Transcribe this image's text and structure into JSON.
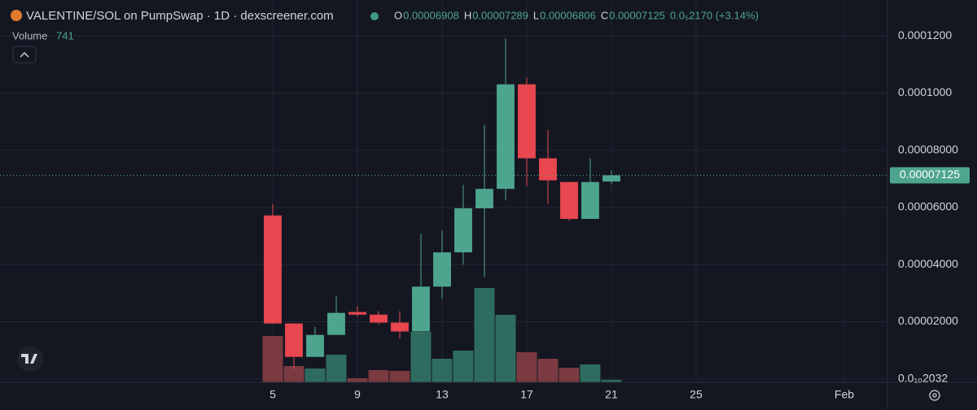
{
  "chart_data": {
    "type": "candlestick",
    "title": "VALENTINE/SOL on PumpSwap · 1D · dexscreener.com",
    "legend_labels": {
      "open": "O",
      "high": "H",
      "low": "L",
      "close": "C"
    },
    "change_label": "0.0₅2170 (+3.14%)",
    "x": [
      5,
      6,
      7,
      8,
      9,
      10,
      11,
      12,
      13,
      14,
      15,
      16,
      17,
      18,
      19,
      20,
      21
    ],
    "open": [
      5.72e-05,
      1.94e-05,
      7.7e-06,
      1.54e-05,
      2.34e-05,
      2.25e-05,
      1.97e-05,
      1.66e-05,
      3.23e-05,
      4.43e-05,
      5.97e-05,
      6.65e-05,
      0.0001031,
      7.72e-05,
      6.89e-05,
      5.6e-05,
      6.908e-05
    ],
    "high": [
      6.12e-05,
      1.94e-05,
      1.82e-05,
      2.89e-05,
      2.55e-05,
      2.37e-05,
      2.37e-05,
      5.08e-05,
      5.2e-05,
      6.8e-05,
      8.89e-05,
      0.0001191,
      0.0001055,
      8.71e-05,
      6.89e-05,
      7.72e-05,
      7.289e-05
    ],
    "low": [
      1.94e-05,
      3.4e-06,
      7.7e-06,
      1.54e-05,
      2.18e-05,
      1.91e-05,
      1.42e-05,
      1.66e-05,
      2.8e-05,
      4e-05,
      3.57e-05,
      6.25e-05,
      6.74e-05,
      6.12e-05,
      5.54e-05,
      5.6e-05,
      6.806e-05
    ],
    "close": [
      1.94e-05,
      7.7e-06,
      1.54e-05,
      2.31e-05,
      2.25e-05,
      1.97e-05,
      1.66e-05,
      3.23e-05,
      4.43e-05,
      5.97e-05,
      6.65e-05,
      0.0001031,
      7.72e-05,
      6.95e-05,
      5.6e-05,
      6.89e-05,
      7.125e-05
    ],
    "volume": {
      "name": "Volume",
      "values": [
        14079,
        4940,
        4199,
        8398,
        1235,
        3705,
        3458,
        15314,
        7163,
        9633,
        28652,
        20501,
        9139,
        7163,
        4446,
        5434,
        741
      ]
    },
    "up_color": "#4ea58e",
    "down_color": "#e8474f",
    "up_volume_color": "#2f6c60",
    "down_volume_color": "#7b3a41",
    "xlim": [
      -7.885,
      34.04
    ],
    "xticks": [
      5,
      9,
      13,
      17,
      21,
      25,
      {
        "value": 32,
        "label": "Feb"
      }
    ],
    "ylim": [
      -1.2e-06,
      0.0001326
    ],
    "yticks": [
      {
        "value": 2.03e-11,
        "label": "0.0₁₀2032"
      },
      {
        "value": 2e-05,
        "label": "0.00002000"
      },
      {
        "value": 4e-05,
        "label": "0.00004000"
      },
      {
        "value": 6e-05,
        "label": "0.00006000"
      },
      {
        "value": 8e-05,
        "label": "0.00008000"
      },
      {
        "value": 0.0001,
        "label": "0.0001000"
      },
      {
        "value": 0.00012,
        "label": "0.0001200"
      }
    ],
    "grid": true
  }
}
